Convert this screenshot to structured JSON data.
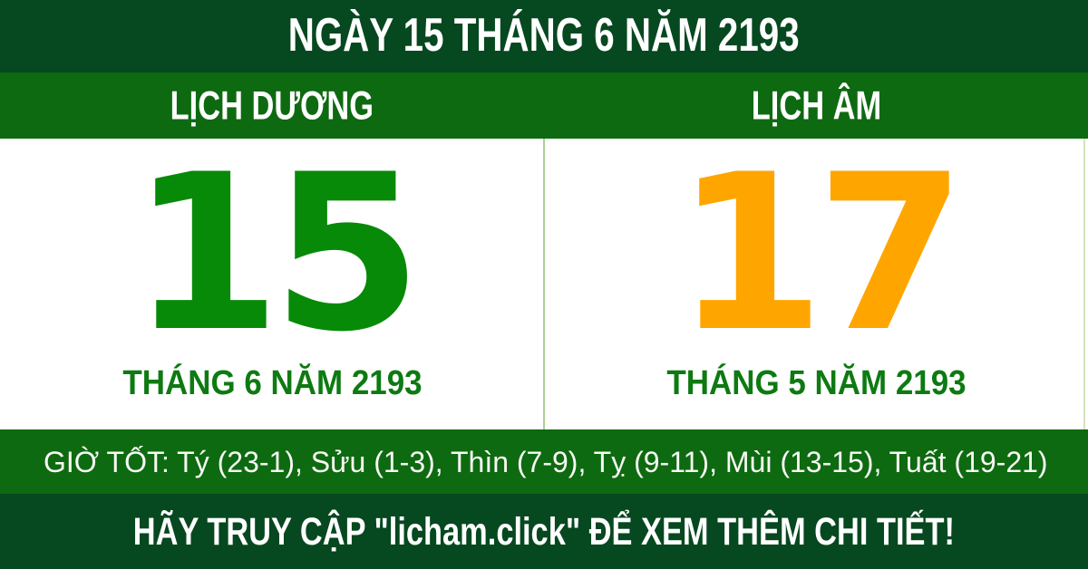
{
  "colors": {
    "dark_green": "#06481F",
    "bright_green": "#0E6A10",
    "number_green": "#078A07",
    "label_green": "#0E7A12",
    "lunar_orange": "#FFA500",
    "divider_light": "#ABD290",
    "edge_line": "#D5E2BC",
    "text_white": "#FFFFFF"
  },
  "header": {
    "title": "NGÀY 15 THÁNG 6 NĂM 2193"
  },
  "calendars": {
    "solar": {
      "label": "LỊCH DƯƠNG",
      "day": "15",
      "month_year": "THÁNG 6 NĂM 2193"
    },
    "lunar": {
      "label": "LỊCH ÂM",
      "day": "17",
      "month_year": "THÁNG 5 NĂM 2193"
    }
  },
  "good_hours": {
    "text": "GIỜ TỐT: Tý (23-1), Sửu (1-3), Thìn (7-9), Tỵ (9-11), Mùi (13-15), Tuất (19-21)"
  },
  "footer": {
    "message": "HÃY TRUY CẬP \"licham.click\" ĐỂ XEM THÊM CHI TIẾT!"
  }
}
